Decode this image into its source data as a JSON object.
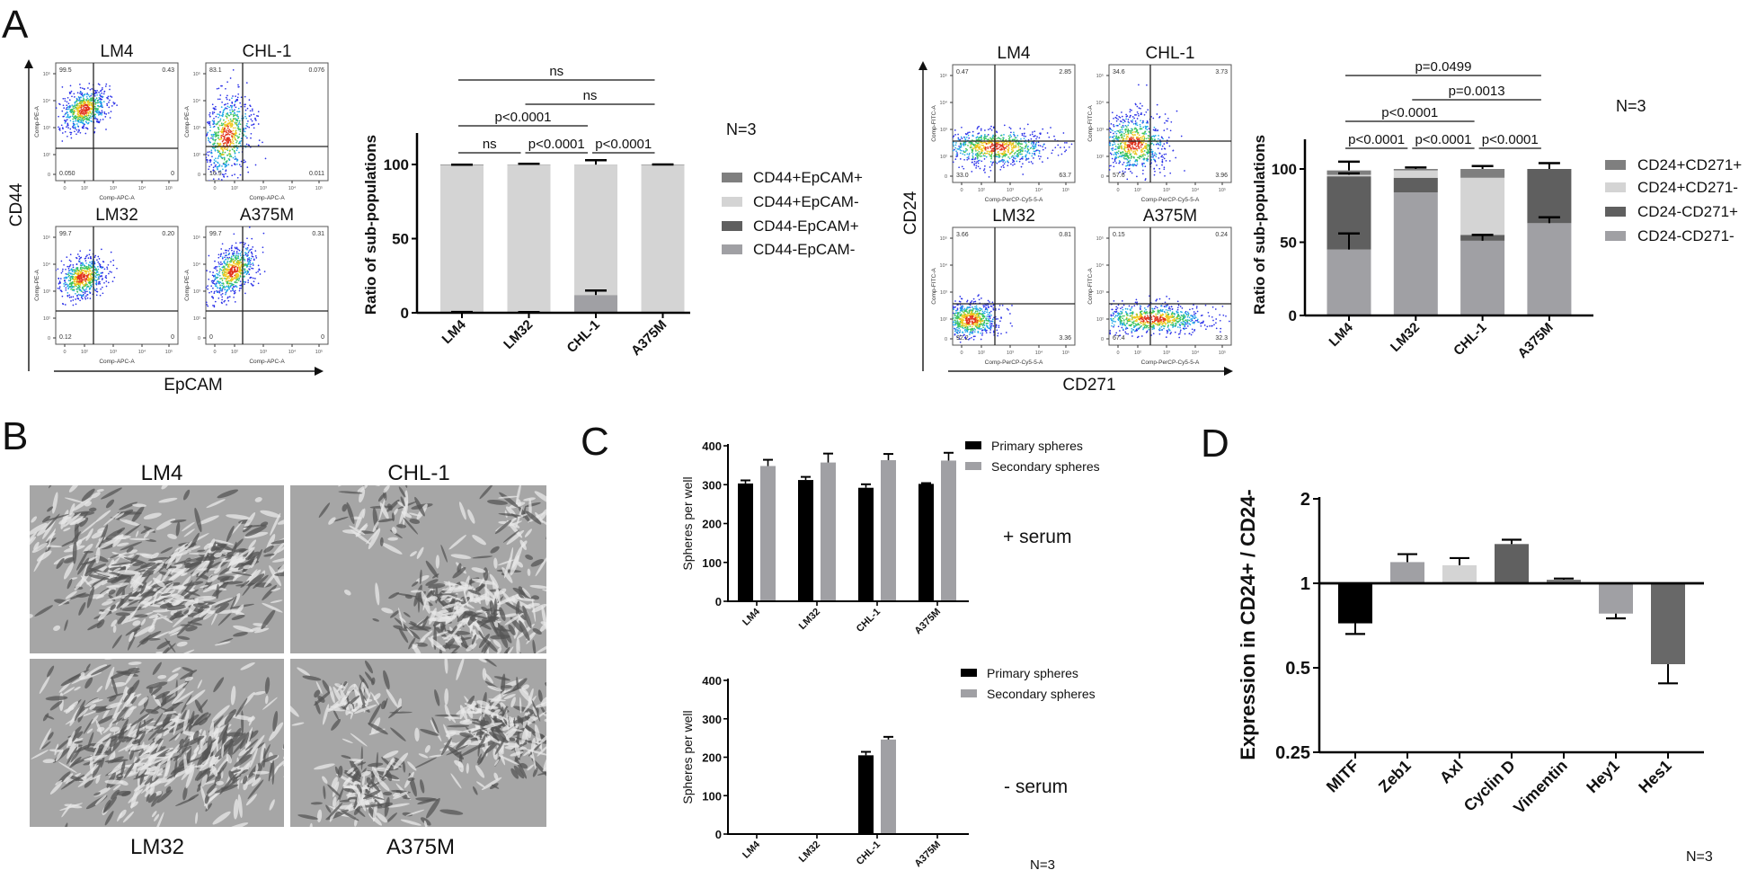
{
  "figure": {
    "panel_labels": {
      "a": "A",
      "b": "B",
      "c": "C",
      "d": "D"
    }
  },
  "flow_cd44": {
    "y_axis": "CD44",
    "x_axis": "EpCAM",
    "x_channel": "Comp-APC-A",
    "y_channel": "Comp-PE-A",
    "ticks": [
      "0",
      "10²",
      "10³",
      "10⁴",
      "10⁵"
    ],
    "plots": [
      {
        "title": "LM4",
        "q": [
          "99.5",
          "0.43",
          "0.050",
          "0"
        ]
      },
      {
        "title": "CHL-1",
        "q": [
          "83.1",
          "0.076",
          "16.9",
          "0.011"
        ]
      },
      {
        "title": "LM32",
        "q": [
          "99.7",
          "0.20",
          "0.12",
          "0"
        ]
      },
      {
        "title": "A375M",
        "q": [
          "99.7",
          "0.31",
          "0",
          "0"
        ]
      }
    ]
  },
  "flow_cd24": {
    "y_axis": "CD24",
    "x_axis": "CD271",
    "x_channel": "Comp-PerCP-Cy5-5-A",
    "y_channel": "Comp-FITC-A",
    "ticks": [
      "0",
      "10²",
      "10³",
      "10⁴",
      "10⁵"
    ],
    "plots": [
      {
        "title": "LM4",
        "q": [
          "0.47",
          "2.85",
          "33.0",
          "63.7"
        ]
      },
      {
        "title": "CHL-1",
        "q": [
          "34.6",
          "3.73",
          "57.6",
          "3.96"
        ]
      },
      {
        "title": "LM32",
        "q": [
          "3.66",
          "0.81",
          "92.2",
          "3.36"
        ]
      },
      {
        "title": "A375M",
        "q": [
          "0.15",
          "0.24",
          "67.4",
          "32.3"
        ]
      }
    ]
  },
  "microscopy": {
    "images": [
      {
        "label": "LM4"
      },
      {
        "label": "CHL-1"
      },
      {
        "label": "LM32"
      },
      {
        "label": "A375M"
      }
    ]
  },
  "chart_data": [
    {
      "type": "bar",
      "stacked": true,
      "categories": [
        "LM4",
        "LM32",
        "CHL-1",
        "A375M"
      ],
      "ylabel": "Ratio of sub-populations",
      "xlabel": "",
      "ylim": [
        0,
        120
      ],
      "yticks": [
        "0",
        "50",
        "100"
      ],
      "ytick_values": [
        0,
        50,
        100
      ],
      "series": [
        {
          "name": "CD44-EpCAM-",
          "color": "#a0a0a4",
          "values": [
            0.05,
            0.12,
            12,
            0
          ],
          "errors": [
            0.5,
            0.3,
            3,
            0
          ]
        },
        {
          "name": "CD44-EpCAM+",
          "color": "#5f5f5f",
          "values": [
            0,
            0,
            0,
            0
          ],
          "errors": [
            0,
            0,
            0,
            0
          ]
        },
        {
          "name": "CD44+EpCAM-",
          "color": "#d4d4d4",
          "values": [
            99.5,
            99.7,
            87.9,
            99.7
          ],
          "errors": [
            0.3,
            0.6,
            3,
            0.3
          ]
        },
        {
          "name": "CD44+EpCAM+",
          "color": "#7f7f7f",
          "values": [
            0.43,
            0.2,
            0.08,
            0.31
          ],
          "errors": [
            0,
            0,
            0,
            0
          ]
        }
      ],
      "comparisons": [
        {
          "from": 0,
          "to": 1,
          "label": "ns"
        },
        {
          "from": 1,
          "to": 2,
          "label": "p<0.0001"
        },
        {
          "from": 2,
          "to": 3,
          "label": "p<0.0001"
        },
        {
          "from": 0,
          "to": 2,
          "label": "p<0.0001"
        },
        {
          "from": 1,
          "to": 3,
          "label": "ns"
        },
        {
          "from": 0,
          "to": 3,
          "label": "ns"
        }
      ],
      "legend_position": "right",
      "note": "N=3"
    },
    {
      "type": "bar",
      "stacked": true,
      "categories": [
        "LM4",
        "LM32",
        "CHL-1",
        "A375M"
      ],
      "ylabel": "Ratio of sub-populations",
      "xlabel": "",
      "ylim": [
        0,
        120
      ],
      "yticks": [
        "0",
        "50",
        "100"
      ],
      "ytick_values": [
        0,
        50,
        100
      ],
      "series": [
        {
          "name": "CD24-CD271-",
          "color": "#a0a0a4",
          "values": [
            45,
            84,
            51,
            63
          ],
          "errors": [
            11,
            0,
            4,
            4
          ]
        },
        {
          "name": "CD24-CD271+",
          "color": "#5f5f5f",
          "values": [
            50,
            10,
            4,
            37
          ],
          "errors": [
            0,
            0,
            0,
            0
          ]
        },
        {
          "name": "CD24+CD271-",
          "color": "#d4d4d4",
          "values": [
            1,
            5,
            39,
            0
          ],
          "errors": [
            1,
            0,
            0,
            0
          ]
        },
        {
          "name": "CD24+CD271+",
          "color": "#7f7f7f",
          "values": [
            3,
            1,
            6,
            0
          ],
          "errors": [
            6,
            1,
            2,
            4
          ]
        }
      ],
      "comparisons": [
        {
          "from": 0,
          "to": 1,
          "label": "p<0.0001"
        },
        {
          "from": 1,
          "to": 2,
          "label": "p<0.0001"
        },
        {
          "from": 2,
          "to": 3,
          "label": "p<0.0001"
        },
        {
          "from": 0,
          "to": 2,
          "label": "p<0.0001"
        },
        {
          "from": 1,
          "to": 3,
          "label": "p=0.0013"
        },
        {
          "from": 0,
          "to": 3,
          "label": "p=0.0499"
        }
      ],
      "legend_position": "right",
      "note": "N=3"
    },
    {
      "type": "bar",
      "stacked": false,
      "categories": [
        "LM4",
        "LM32",
        "CHL-1",
        "A375M"
      ],
      "ylabel": "Spheres per well",
      "xlabel": "",
      "ylim": [
        0,
        400
      ],
      "yticks": [
        "0",
        "100",
        "200",
        "300",
        "400"
      ],
      "ytick_values": [
        0,
        100,
        200,
        300,
        400
      ],
      "series": [
        {
          "name": "Primary spheres",
          "color": "#000000",
          "values": [
            303,
            312,
            292,
            302
          ],
          "errors": [
            8,
            8,
            9,
            2
          ]
        },
        {
          "name": "Secondary spheres",
          "color": "#a0a0a4",
          "values": [
            348,
            357,
            363,
            362
          ],
          "errors": [
            16,
            23,
            16,
            20
          ]
        }
      ],
      "annotation": "+ serum",
      "legend_position": "top-right"
    },
    {
      "type": "bar",
      "stacked": false,
      "categories": [
        "LM4",
        "LM32",
        "CHL-1",
        "A375M"
      ],
      "ylabel": "Spheres per well",
      "xlabel": "",
      "ylim": [
        0,
        400
      ],
      "yticks": [
        "0",
        "100",
        "200",
        "300",
        "400"
      ],
      "ytick_values": [
        0,
        100,
        200,
        300,
        400
      ],
      "series": [
        {
          "name": "Primary spheres",
          "color": "#000000",
          "values": [
            0,
            0,
            205,
            0
          ],
          "errors": [
            0,
            0,
            9,
            0
          ]
        },
        {
          "name": "Secondary spheres",
          "color": "#a0a0a4",
          "values": [
            0,
            0,
            246,
            0
          ],
          "errors": [
            0,
            0,
            7,
            0
          ]
        }
      ],
      "annotation": "- serum",
      "legend_position": "top-right",
      "note": "N=3"
    },
    {
      "type": "bar",
      "yscale": "log2",
      "baseline": 1,
      "categories": [
        "MITF",
        "Zeb1",
        "Axl",
        "Cyclin D",
        "Vimentin",
        "Hey1",
        "Hes1"
      ],
      "values": [
        0.72,
        1.19,
        1.16,
        1.38,
        1.03,
        0.78,
        0.515
      ],
      "error_ends": [
        0.66,
        1.27,
        1.23,
        1.43,
        1.04,
        0.75,
        0.44
      ],
      "colors": [
        "#000000",
        "#a0a0a4",
        "#d4d4d4",
        "#606060",
        "#7f7f7f",
        "#a0a0a4",
        "#686868"
      ],
      "ylabel": "Expression in CD24+ / CD24-",
      "xlabel": "",
      "ylim": [
        0.25,
        2
      ],
      "yticks": [
        "0.25",
        "0.5",
        "1",
        "2"
      ],
      "ytick_values": [
        0.25,
        0.5,
        1,
        2
      ],
      "note": "N=3"
    }
  ]
}
